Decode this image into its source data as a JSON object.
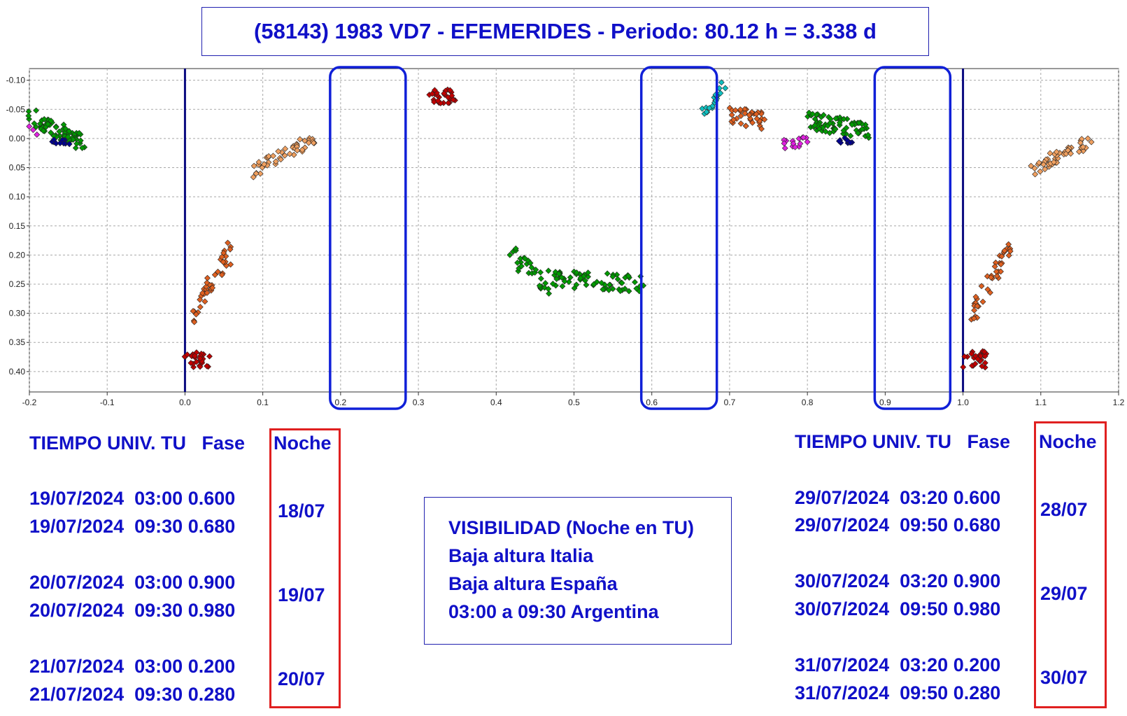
{
  "title": "(58143) 1983 VD7 - EFEMERIDES - Periodo: 80.12 h = 3.338 d",
  "chart_data": {
    "type": "scatter",
    "xlim": [
      -0.2,
      1.2
    ],
    "ylim": [
      -0.12,
      0.435
    ],
    "y_inverted": true,
    "grid": true,
    "x_ticks": [
      "-0.2",
      "-0.1",
      "0.0",
      "0.1",
      "0.2",
      "0.3",
      "0.4",
      "0.5",
      "0.6",
      "0.7",
      "0.8",
      "0.9",
      "1.0",
      "1.1",
      "1.2"
    ],
    "y_ticks": [
      "-0.10",
      "-0.05",
      "0.00",
      "0.05",
      "0.10",
      "0.15",
      "0.20",
      "0.25",
      "0.30",
      "0.35",
      "0.40"
    ],
    "y_tick_values": [
      -0.1,
      -0.05,
      0.0,
      0.05,
      0.1,
      0.15,
      0.2,
      0.25,
      0.3,
      0.35,
      0.4
    ],
    "vertical_lines": [
      0.0,
      1.0
    ],
    "highlight_windows": [
      [
        0.2,
        0.28
      ],
      [
        0.6,
        0.68
      ],
      [
        0.9,
        0.98
      ]
    ],
    "series": [
      {
        "color": "#009a00",
        "x0": -0.2,
        "x1": -0.13,
        "y0": -0.04,
        "y1": 0.01,
        "n": 70,
        "spread": 0.015
      },
      {
        "color": "#000090",
        "x0": -0.18,
        "x1": -0.15,
        "y0": -0.005,
        "y1": 0.01,
        "n": 10,
        "spread": 0.006
      },
      {
        "color": "#e020e0",
        "x0": -0.2,
        "x1": -0.19,
        "y0": -0.02,
        "y1": -0.01,
        "n": 3,
        "spread": 0.005
      },
      {
        "color": "#f0a060",
        "x0": 0.09,
        "x1": 0.165,
        "y0": 0.055,
        "y1": 0.0,
        "n": 45,
        "spread": 0.012
      },
      {
        "color": "#e06020",
        "x0": 0.01,
        "x1": 0.06,
        "y0": 0.305,
        "y1": 0.19,
        "n": 40,
        "spread": 0.018
      },
      {
        "color": "#c00000",
        "x0": 0.0,
        "x1": 0.03,
        "y0": 0.38,
        "y1": 0.38,
        "n": 25,
        "spread": 0.015
      },
      {
        "color": "#c00000",
        "x0": 0.315,
        "x1": 0.345,
        "y0": -0.075,
        "y1": -0.075,
        "n": 30,
        "spread": 0.015
      },
      {
        "color": "#009a00",
        "x0": 0.42,
        "x1": 0.47,
        "y0": 0.2,
        "y1": 0.26,
        "n": 30,
        "spread": 0.015
      },
      {
        "color": "#009a00",
        "x0": 0.47,
        "x1": 0.59,
        "y0": 0.24,
        "y1": 0.25,
        "n": 65,
        "spread": 0.015
      },
      {
        "color": "#10c0c0",
        "x0": 0.665,
        "x1": 0.695,
        "y0": -0.045,
        "y1": -0.09,
        "n": 20,
        "spread": 0.015
      },
      {
        "color": "#e06020",
        "x0": 0.7,
        "x1": 0.745,
        "y0": -0.04,
        "y1": -0.03,
        "n": 35,
        "spread": 0.015
      },
      {
        "color": "#e020e0",
        "x0": 0.77,
        "x1": 0.8,
        "y0": 0.01,
        "y1": 0.005,
        "n": 15,
        "spread": 0.008
      },
      {
        "color": "#009a00",
        "x0": 0.8,
        "x1": 0.88,
        "y0": -0.03,
        "y1": -0.015,
        "n": 70,
        "spread": 0.015
      },
      {
        "color": "#000090",
        "x0": 0.83,
        "x1": 0.86,
        "y0": 0.0,
        "y1": 0.005,
        "n": 10,
        "spread": 0.006
      },
      {
        "color": "#f0a060",
        "x0": 1.09,
        "x1": 1.165,
        "y0": 0.055,
        "y1": 0.0,
        "n": 45,
        "spread": 0.012
      },
      {
        "color": "#e06020",
        "x0": 1.01,
        "x1": 1.06,
        "y0": 0.305,
        "y1": 0.19,
        "n": 40,
        "spread": 0.018
      },
      {
        "color": "#c00000",
        "x0": 1.0,
        "x1": 1.03,
        "y0": 0.38,
        "y1": 0.38,
        "n": 25,
        "spread": 0.015
      }
    ]
  },
  "left_table": {
    "header": "TIEMPO UNIV. TU   Fase",
    "noche_header": "Noche",
    "rows": [
      "19/07/2024  03:00 0.600",
      "19/07/2024  09:30 0.680",
      "20/07/2024  03:00 0.900",
      "20/07/2024  09:30 0.980",
      "21/07/2024  03:00 0.200",
      "21/07/2024  09:30 0.280"
    ],
    "nights": [
      "18/07",
      "19/07",
      "20/07"
    ]
  },
  "right_table": {
    "header": "TIEMPO UNIV. TU   Fase",
    "noche_header": "Noche",
    "rows": [
      "29/07/2024  03:20 0.600",
      "29/07/2024  09:50 0.680",
      "30/07/2024  03:20 0.900",
      "30/07/2024  09:50 0.980",
      "31/07/2024  03:20 0.200",
      "31/07/2024  09:50 0.280"
    ],
    "nights": [
      "28/07",
      "29/07",
      "30/07"
    ]
  },
  "visibility": {
    "lines": [
      "VISIBILIDAD (Noche en TU)",
      "Baja altura Italia",
      "Baja altura España",
      "03:00 a 09:30 Argentina"
    ]
  }
}
